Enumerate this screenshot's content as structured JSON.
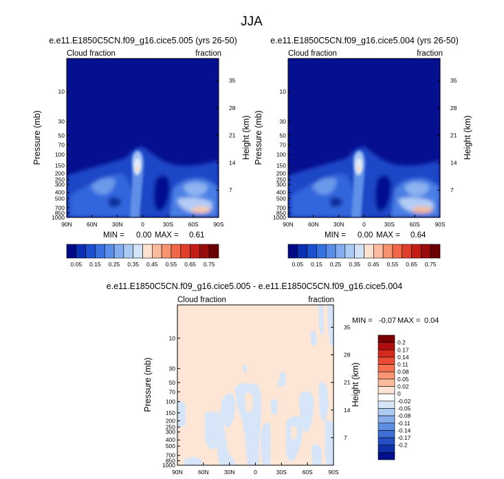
{
  "page_title": "JJA",
  "chart_data": [
    {
      "type": "heatmap",
      "title": "e.e11.E1850C5CN.f09_g16.cice5.005 (yrs 26-50)",
      "subtitle_left": "Cloud fraction",
      "subtitle_right": "fraction",
      "xlabel": "",
      "ylabel": "Pressure (mb)",
      "ylabel_right": "Height (km)",
      "x_ticks": [
        "90N",
        "60N",
        "30N",
        "0",
        "30S",
        "60S",
        "90S"
      ],
      "y_ticks": [
        "10",
        "30",
        "50",
        "70",
        "100",
        "150",
        "200",
        "250",
        "300",
        "400",
        "500",
        "700",
        "850",
        "1000"
      ],
      "y_right_ticks": [
        "35",
        "28",
        "21",
        "14",
        "7"
      ],
      "ylim": [
        1000,
        3
      ],
      "min_label": "MIN =",
      "min_value": "0.00",
      "max_label": "MAX =",
      "max_value": "0.61",
      "colorbar_labels": [
        "0.05",
        "0.15",
        "0.25",
        "0.35",
        "0.45",
        "0.55",
        "0.65",
        "0.75"
      ],
      "colorbar_colors": [
        "#000a87",
        "#0b2fb3",
        "#1c4fcf",
        "#3770e0",
        "#5a8ee8",
        "#84aef0",
        "#adcaf5",
        "#d2e3f8",
        "#fde0cf",
        "#fbbb9f",
        "#f7936f",
        "#f06848",
        "#e0402b",
        "#c41d16",
        "#9a0c0a",
        "#6b0000"
      ]
    },
    {
      "type": "heatmap",
      "title": "e.e11.E1850C5CN.f09_g16.cice5.004 (yrs 26-50)",
      "subtitle_left": "Cloud fraction",
      "subtitle_right": "fraction",
      "xlabel": "",
      "ylabel": "Pressure (mb)",
      "ylabel_right": "Height (km)",
      "x_ticks": [
        "90N",
        "60N",
        "30N",
        "0",
        "30S",
        "60S",
        "90S"
      ],
      "y_ticks": [
        "10",
        "30",
        "50",
        "70",
        "100",
        "150",
        "200",
        "250",
        "300",
        "400",
        "500",
        "700",
        "850",
        "1000"
      ],
      "y_right_ticks": [
        "35",
        "28",
        "21",
        "14",
        "7"
      ],
      "ylim": [
        1000,
        3
      ],
      "min_label": "MIN =",
      "min_value": "0.00",
      "max_label": "MAX =",
      "max_value": "0.64",
      "colorbar_labels": [
        "0.05",
        "0.15",
        "0.25",
        "0.35",
        "0.45",
        "0.55",
        "0.65",
        "0.75"
      ],
      "colorbar_colors": [
        "#000a87",
        "#0b2fb3",
        "#1c4fcf",
        "#3770e0",
        "#5a8ee8",
        "#84aef0",
        "#adcaf5",
        "#d2e3f8",
        "#fde0cf",
        "#fbbb9f",
        "#f7936f",
        "#f06848",
        "#e0402b",
        "#c41d16",
        "#9a0c0a",
        "#6b0000"
      ]
    },
    {
      "type": "heatmap",
      "title": "e.e11.E1850C5CN.f09_g16.cice5.005 - e.e11.E1850C5CN.f09_g16.cice5.004",
      "subtitle_left": "Cloud fraction",
      "subtitle_right": "fraction",
      "xlabel": "",
      "ylabel": "Pressure (mb)",
      "ylabel_right": "Height (km)",
      "x_ticks": [
        "90N",
        "60N",
        "30N",
        "0",
        "30S",
        "60S",
        "90S"
      ],
      "y_ticks": [
        "10",
        "30",
        "50",
        "70",
        "100",
        "150",
        "200",
        "250",
        "300",
        "400",
        "500",
        "700",
        "850",
        "1000"
      ],
      "y_right_ticks": [
        "35",
        "28",
        "21",
        "14",
        "7"
      ],
      "ylim": [
        1000,
        3
      ],
      "min_label": "MIN =",
      "min_value": "-0.07",
      "max_label": "MAX =",
      "max_value": "0.04",
      "colorbar_labels": [
        "0.2",
        "0.17",
        "0.14",
        "0.11",
        "0.08",
        "0.05",
        "0.02",
        "0",
        "-0.02",
        "-0.05",
        "-0.08",
        "-0.11",
        "-0.14",
        "-0.17",
        "-0.2"
      ],
      "colorbar_colors": [
        "#7a0000",
        "#b00f0f",
        "#d42a1e",
        "#ea4b33",
        "#f4704f",
        "#f89673",
        "#fbbc9e",
        "#fde4d2",
        "#ffffff",
        "#d6e6f8",
        "#aecbf3",
        "#86acea",
        "#5e8ee2",
        "#3e6fd6",
        "#2350c4",
        "#1030a9",
        "#000f8c"
      ]
    }
  ]
}
